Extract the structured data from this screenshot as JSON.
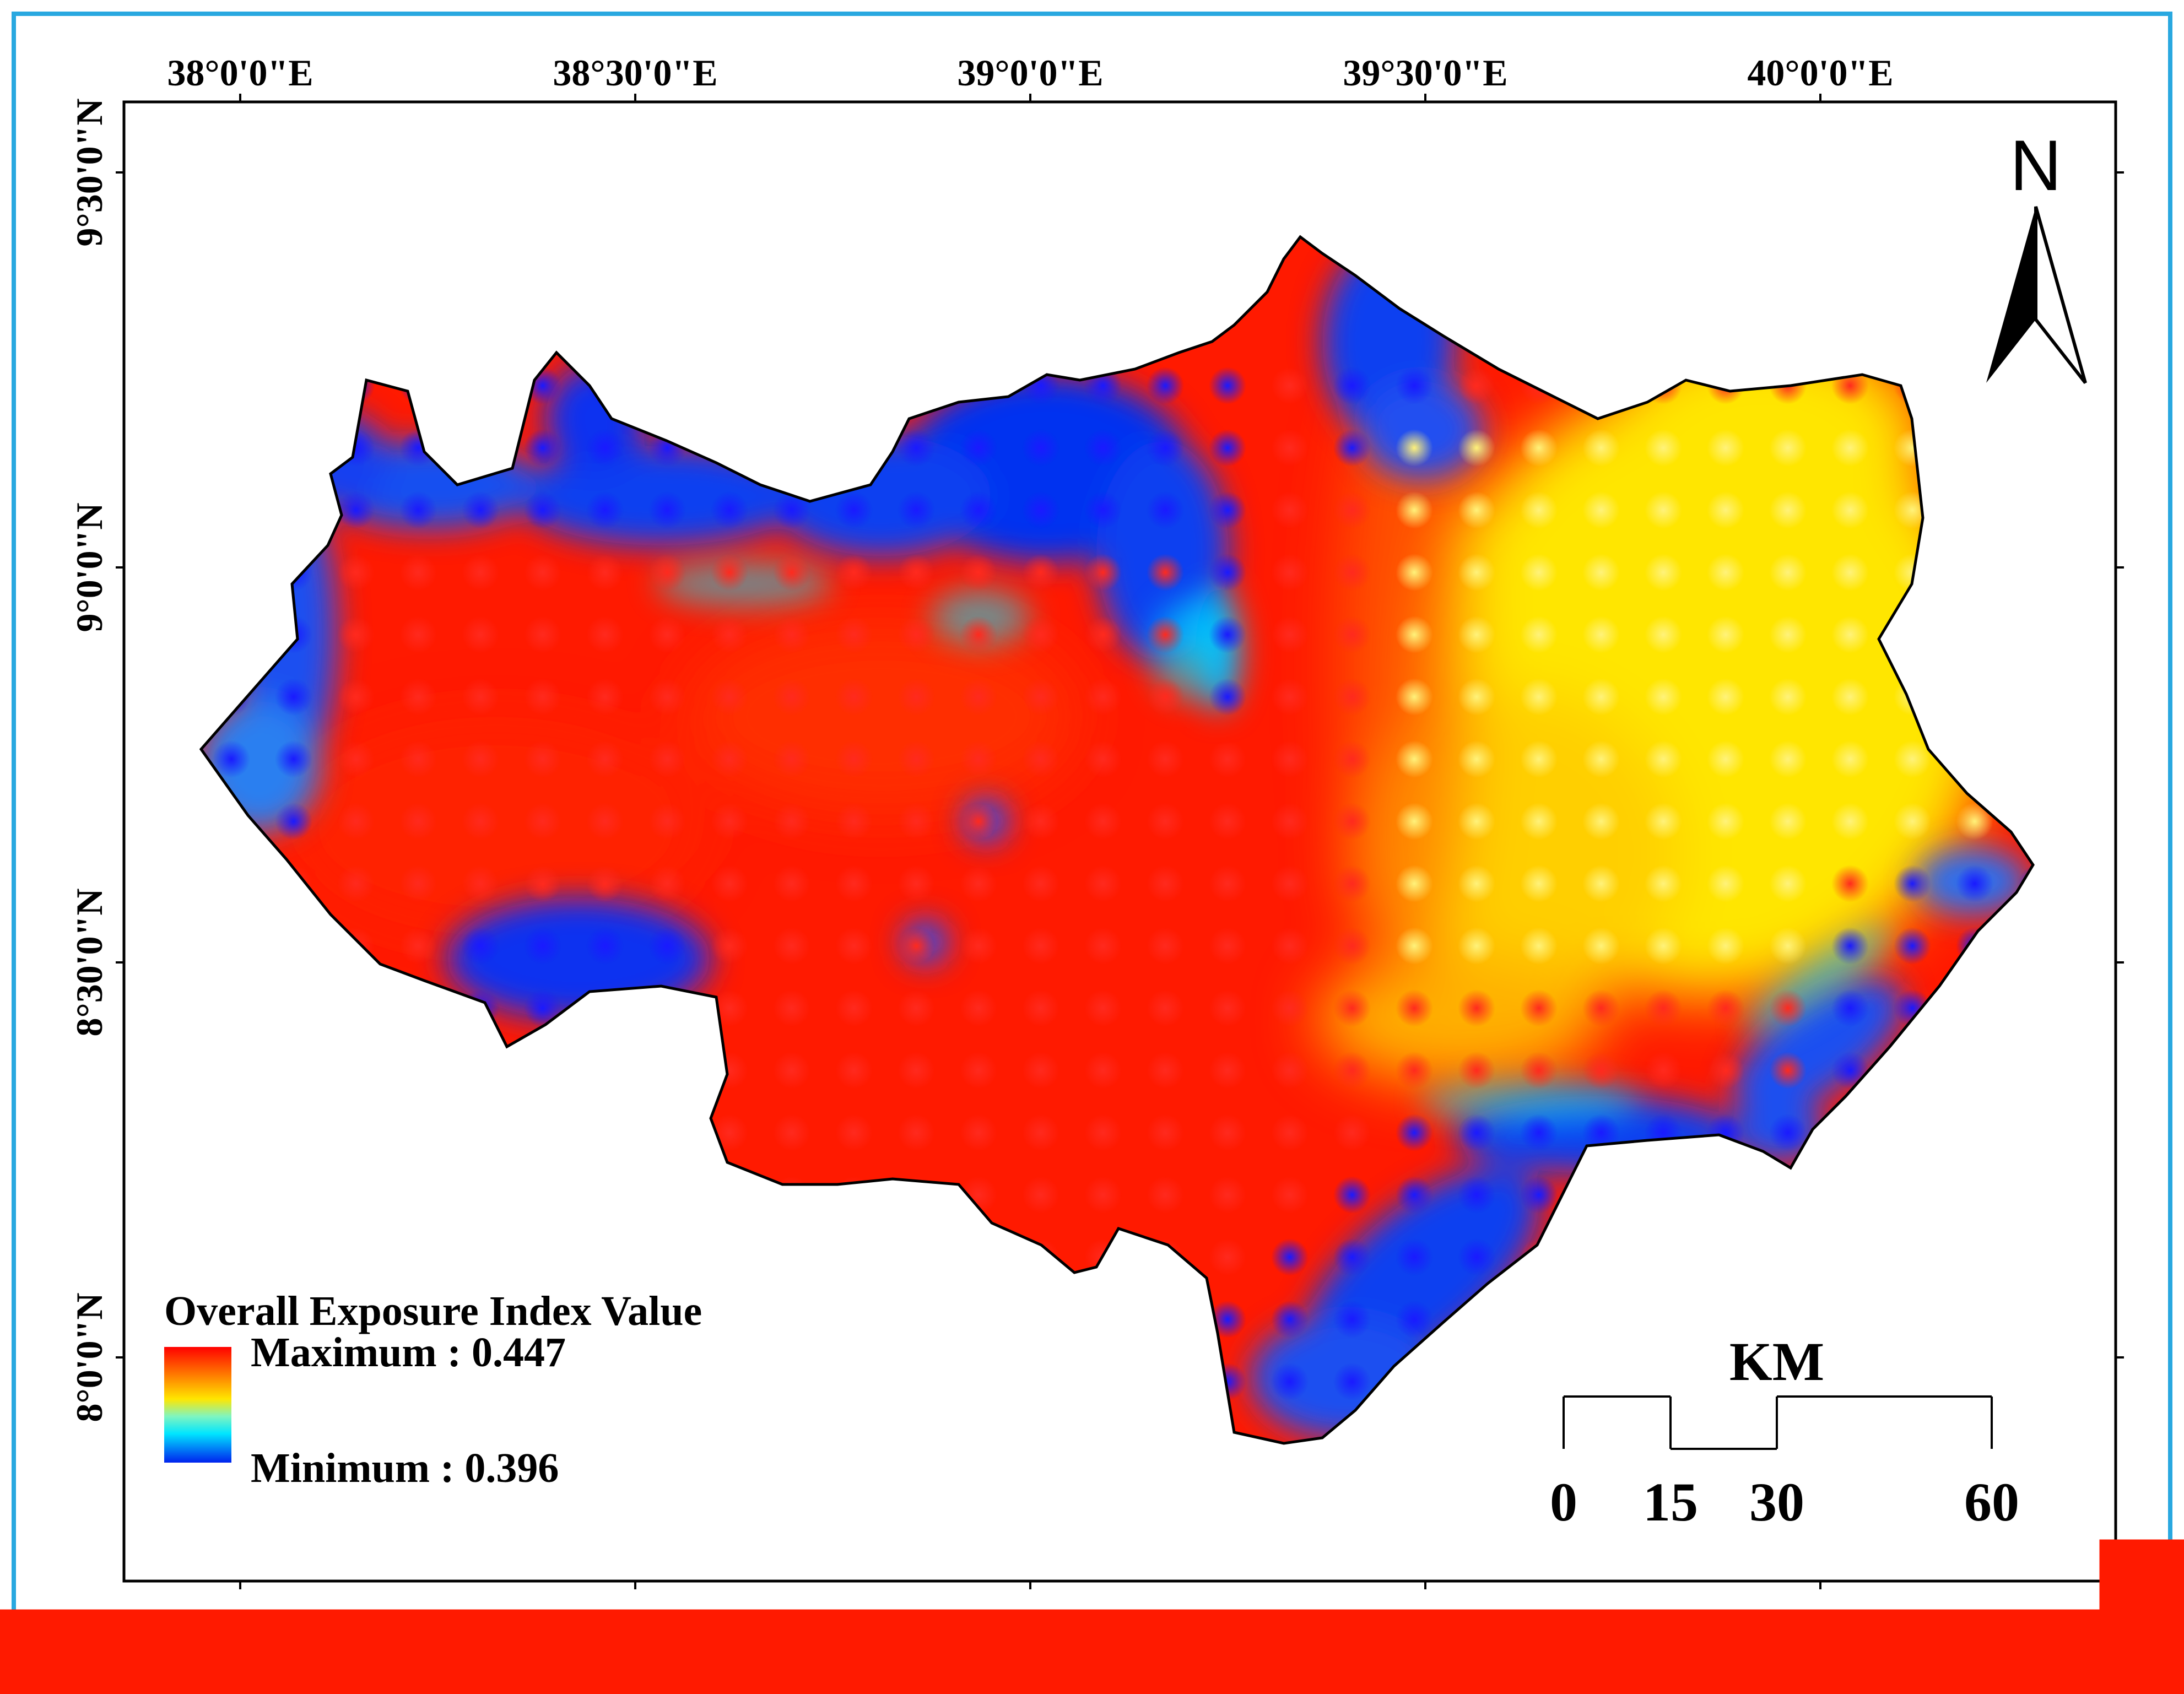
{
  "map": {
    "longitude_labels": [
      "38°0'0\"E",
      "38°30'0\"E",
      "39°0'0\"E",
      "39°30'0\"E",
      "40°0'0\"E"
    ],
    "latitude_labels": [
      "9°30'0\"N",
      "9°0'0\"N",
      "8°30'0\"N",
      "8°0'0\"N"
    ],
    "colors": {
      "high": "#ff0000",
      "mid_high": "#ff9900",
      "mid": "#ffe600",
      "low_mid": "#7ff5c0",
      "low": "#00e5ff",
      "min": "#0022ee"
    }
  },
  "north_arrow": {
    "label": "N",
    "icon": "north-arrow-icon"
  },
  "legend": {
    "title": "Overall Exposure Index Value",
    "max_label": "Maximum : 0.447",
    "min_label": "Minimum : 0.396",
    "max_value": 0.447,
    "min_value": 0.396
  },
  "scale_bar": {
    "unit": "KM",
    "ticks": [
      "0",
      "15",
      "30",
      "60"
    ]
  }
}
